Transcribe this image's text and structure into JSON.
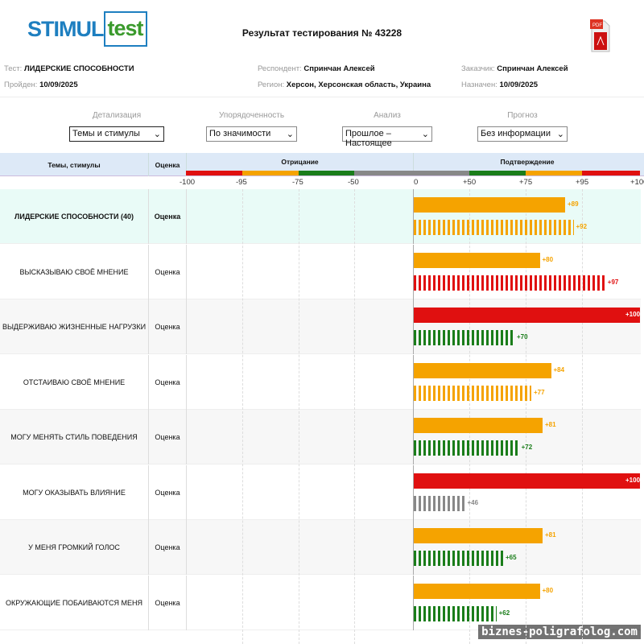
{
  "logo": {
    "part1": "STIMUL",
    "part2": "test"
  },
  "title": "Результат тестирования № 43228",
  "pdf_icon": "pdf-file-icon",
  "meta": {
    "test_label": "Тест:",
    "test": "ЛИДЕРСКИЕ СПОСОБНОСТИ",
    "passed_label": "Пройден:",
    "passed": "10/09/2025",
    "respondent_label": "Респондент:",
    "respondent": "Спринчан Алексей",
    "region_label": "Регион:",
    "region": "Херсон, Херсонская область, Украина",
    "customer_label": "Заказчик:",
    "customer": "Спринчан Алексей",
    "assigned_label": "Назначен:",
    "assigned": "10/09/2025"
  },
  "controls": [
    {
      "label": "Детализация",
      "value": "Темы и стимулы"
    },
    {
      "label": "Упорядоченность",
      "value": "По значимости"
    },
    {
      "label": "Анализ",
      "value": "Прошлое – Настоящее"
    },
    {
      "label": "Прогноз",
      "value": "Без информации"
    }
  ],
  "table": {
    "col_topics": "Темы, стимулы",
    "col_score": "Оценка",
    "col_neg": "Отрицание",
    "col_pos": "Подтверждение",
    "ticks_neg": [
      "-100",
      "-95",
      "-75",
      "-50"
    ],
    "ticks_pos": [
      "0",
      "+50",
      "+75",
      "+95",
      "+100"
    ]
  },
  "colors": {
    "gray": "#888888",
    "green": "#1a7d1a",
    "orange": "#f5a300",
    "red": "#e01010"
  },
  "chart_data": {
    "type": "bar",
    "x_range": [
      -100,
      100
    ],
    "scale_breaks": [
      -100,
      -95,
      -75,
      -50,
      0,
      50,
      75,
      95,
      100
    ],
    "series": [
      {
        "name": "Прошлое",
        "style": "solid"
      },
      {
        "name": "Настоящее",
        "style": "striped"
      }
    ],
    "rows": [
      {
        "label": "ЛИДЕРСКИЕ СПОСОБНОСТИ (40)",
        "score": "Оценка",
        "bold": true,
        "solid": 89,
        "striped": 92,
        "solid_label": "+89",
        "striped_label": "+92"
      },
      {
        "label": "ВЫСКАЗЫВАЮ СВОЁ МНЕНИЕ",
        "score": "Оценка",
        "solid": 80,
        "striped": 97,
        "solid_label": "+80",
        "striped_label": "+97"
      },
      {
        "label": "ВЫДЕРЖИВАЮ ЖИЗНЕННЫЕ НАГРУЗКИ",
        "score": "Оценка",
        "solid": 100,
        "striped": 70,
        "solid_label": "+100",
        "striped_label": "+70"
      },
      {
        "label": "ОТСТАИВАЮ СВОЁ МНЕНИЕ",
        "score": "Оценка",
        "solid": 84,
        "striped": 77,
        "solid_label": "+84",
        "striped_label": "+77"
      },
      {
        "label": "МОГУ МЕНЯТЬ СТИЛЬ ПОВЕДЕНИЯ",
        "score": "Оценка",
        "solid": 81,
        "striped": 72,
        "solid_label": "+81",
        "striped_label": "+72"
      },
      {
        "label": "МОГУ ОКАЗЫВАТЬ ВЛИЯНИЕ",
        "score": "Оценка",
        "solid": 100,
        "striped": 46,
        "solid_label": "+100",
        "striped_label": "+46"
      },
      {
        "label": "У МЕНЯ ГРОМКИЙ ГОЛОС",
        "score": "Оценка",
        "solid": 81,
        "striped": 65,
        "solid_label": "+81",
        "striped_label": "+65"
      },
      {
        "label": "ОКРУЖАЮЩИЕ ПОБАИВАЮТСЯ МЕНЯ",
        "score": "Оценка",
        "solid": 80,
        "striped": 62,
        "solid_label": "+80",
        "striped_label": "+62"
      }
    ]
  },
  "watermark": "biznes-poligrafolog.com"
}
